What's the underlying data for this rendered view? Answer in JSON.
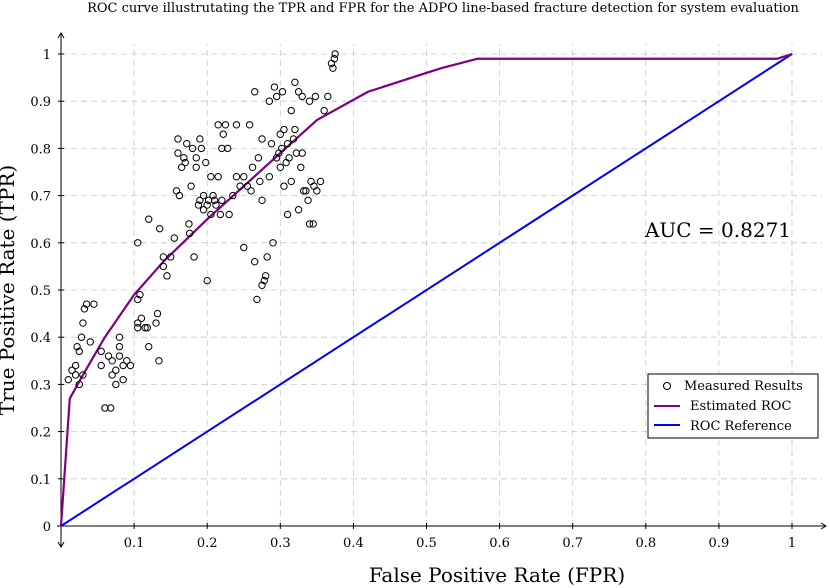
{
  "chart_data": {
    "type": "line",
    "title": "ROC curve illustrutating the TPR and FPR for the ADPO line-based fracture detection for system evaluation",
    "xlabel": "False Positive Rate (FPR)",
    "ylabel": "True Positive Rate (TPR)",
    "xlim": [
      0,
      1
    ],
    "ylim": [
      0,
      1
    ],
    "xticks": [
      "0.1",
      "0.2",
      "0.3",
      "0.4",
      "0.5",
      "0.6",
      "0.7",
      "0.8",
      "0.9",
      "1"
    ],
    "yticks": [
      "0",
      "0.1",
      "0.2",
      "0.3",
      "0.4",
      "0.5",
      "0.6",
      "0.7",
      "0.8",
      "0.9",
      "1"
    ],
    "grid": true,
    "legend_position": "right",
    "annotation": "AUC = 0.8271",
    "colors": {
      "measured": "#000000",
      "estimated": "#800080",
      "reference": "#0000ff",
      "grid": "#c8c8c8"
    },
    "series": [
      {
        "name": "Measured Results",
        "kind": "scatter",
        "marker": "circle-open",
        "points": [
          [
            0.01,
            0.31
          ],
          [
            0.015,
            0.33
          ],
          [
            0.02,
            0.32
          ],
          [
            0.02,
            0.34
          ],
          [
            0.022,
            0.38
          ],
          [
            0.025,
            0.37
          ],
          [
            0.025,
            0.3
          ],
          [
            0.028,
            0.4
          ],
          [
            0.03,
            0.43
          ],
          [
            0.03,
            0.32
          ],
          [
            0.032,
            0.46
          ],
          [
            0.035,
            0.47
          ],
          [
            0.045,
            0.47
          ],
          [
            0.04,
            0.39
          ],
          [
            0.055,
            0.37
          ],
          [
            0.055,
            0.34
          ],
          [
            0.06,
            0.25
          ],
          [
            0.065,
            0.36
          ],
          [
            0.07,
            0.35
          ],
          [
            0.068,
            0.25
          ],
          [
            0.07,
            0.32
          ],
          [
            0.075,
            0.3
          ],
          [
            0.075,
            0.33
          ],
          [
            0.08,
            0.36
          ],
          [
            0.08,
            0.38
          ],
          [
            0.08,
            0.4
          ],
          [
            0.085,
            0.34
          ],
          [
            0.085,
            0.31
          ],
          [
            0.09,
            0.35
          ],
          [
            0.095,
            0.34
          ],
          [
            0.105,
            0.43
          ],
          [
            0.105,
            0.42
          ],
          [
            0.105,
            0.48
          ],
          [
            0.108,
            0.49
          ],
          [
            0.11,
            0.44
          ],
          [
            0.115,
            0.42
          ],
          [
            0.118,
            0.42
          ],
          [
            0.12,
            0.65
          ],
          [
            0.12,
            0.38
          ],
          [
            0.105,
            0.6
          ],
          [
            0.13,
            0.43
          ],
          [
            0.132,
            0.45
          ],
          [
            0.134,
            0.35
          ],
          [
            0.135,
            0.63
          ],
          [
            0.14,
            0.55
          ],
          [
            0.145,
            0.53
          ],
          [
            0.15,
            0.57
          ],
          [
            0.155,
            0.61
          ],
          [
            0.158,
            0.71
          ],
          [
            0.16,
            0.82
          ],
          [
            0.16,
            0.79
          ],
          [
            0.162,
            0.7
          ],
          [
            0.165,
            0.76
          ],
          [
            0.168,
            0.78
          ],
          [
            0.17,
            0.77
          ],
          [
            0.172,
            0.81
          ],
          [
            0.175,
            0.64
          ],
          [
            0.176,
            0.62
          ],
          [
            0.178,
            0.72
          ],
          [
            0.18,
            0.8
          ],
          [
            0.182,
            0.57
          ],
          [
            0.185,
            0.78
          ],
          [
            0.188,
            0.68
          ],
          [
            0.19,
            0.69
          ],
          [
            0.19,
            0.82
          ],
          [
            0.192,
            0.8
          ],
          [
            0.195,
            0.7
          ],
          [
            0.195,
            0.67
          ],
          [
            0.198,
            0.77
          ],
          [
            0.2,
            0.52
          ],
          [
            0.2,
            0.68
          ],
          [
            0.202,
            0.69
          ],
          [
            0.205,
            0.66
          ],
          [
            0.205,
            0.74
          ],
          [
            0.208,
            0.7
          ],
          [
            0.21,
            0.69
          ],
          [
            0.212,
            0.68
          ],
          [
            0.215,
            0.74
          ],
          [
            0.215,
            0.85
          ],
          [
            0.218,
            0.66
          ],
          [
            0.22,
            0.69
          ],
          [
            0.22,
            0.8
          ],
          [
            0.222,
            0.83
          ],
          [
            0.225,
            0.85
          ],
          [
            0.228,
            0.8
          ],
          [
            0.23,
            0.66
          ],
          [
            0.235,
            0.7
          ],
          [
            0.24,
            0.85
          ],
          [
            0.245,
            0.72
          ],
          [
            0.25,
            0.74
          ],
          [
            0.25,
            0.59
          ],
          [
            0.255,
            0.72
          ],
          [
            0.258,
            0.85
          ],
          [
            0.26,
            0.71
          ],
          [
            0.262,
            0.76
          ],
          [
            0.265,
            0.56
          ],
          [
            0.265,
            0.92
          ],
          [
            0.268,
            0.48
          ],
          [
            0.27,
            0.78
          ],
          [
            0.272,
            0.73
          ],
          [
            0.275,
            0.69
          ],
          [
            0.275,
            0.51
          ],
          [
            0.278,
            0.52
          ],
          [
            0.28,
            0.53
          ],
          [
            0.282,
            0.57
          ],
          [
            0.285,
            0.74
          ],
          [
            0.285,
            0.9
          ],
          [
            0.288,
            0.81
          ],
          [
            0.29,
            0.6
          ],
          [
            0.292,
            0.93
          ],
          [
            0.295,
            0.91
          ],
          [
            0.295,
            0.78
          ],
          [
            0.298,
            0.79
          ],
          [
            0.3,
            0.83
          ],
          [
            0.3,
            0.76
          ],
          [
            0.302,
            0.8
          ],
          [
            0.303,
            0.92
          ],
          [
            0.305,
            0.84
          ],
          [
            0.305,
            0.72
          ],
          [
            0.308,
            0.77
          ],
          [
            0.31,
            0.81
          ],
          [
            0.31,
            0.66
          ],
          [
            0.312,
            0.78
          ],
          [
            0.315,
            0.88
          ],
          [
            0.315,
            0.73
          ],
          [
            0.318,
            0.82
          ],
          [
            0.32,
            0.94
          ],
          [
            0.32,
            0.84
          ],
          [
            0.322,
            0.79
          ],
          [
            0.325,
            0.92
          ],
          [
            0.325,
            0.67
          ],
          [
            0.328,
            0.76
          ],
          [
            0.33,
            0.91
          ],
          [
            0.33,
            0.79
          ],
          [
            0.332,
            0.71
          ],
          [
            0.335,
            0.71
          ],
          [
            0.338,
            0.69
          ],
          [
            0.34,
            0.9
          ],
          [
            0.34,
            0.64
          ],
          [
            0.342,
            0.73
          ],
          [
            0.345,
            0.64
          ],
          [
            0.346,
            0.72
          ],
          [
            0.348,
            0.91
          ],
          [
            0.35,
            0.71
          ],
          [
            0.355,
            0.73
          ],
          [
            0.36,
            0.88
          ],
          [
            0.365,
            0.91
          ],
          [
            0.37,
            0.98
          ],
          [
            0.372,
            0.97
          ],
          [
            0.374,
            0.99
          ],
          [
            0.375,
            1.0
          ],
          [
            0.275,
            0.82
          ],
          [
            0.24,
            0.74
          ],
          [
            0.185,
            0.76
          ],
          [
            0.14,
            0.57
          ]
        ]
      },
      {
        "name": "Estimated ROC",
        "kind": "line",
        "points": [
          [
            0,
            0
          ],
          [
            0.012,
            0.27
          ],
          [
            0.03,
            0.32
          ],
          [
            0.06,
            0.4
          ],
          [
            0.1,
            0.49
          ],
          [
            0.14,
            0.56
          ],
          [
            0.2,
            0.65
          ],
          [
            0.25,
            0.72
          ],
          [
            0.3,
            0.79
          ],
          [
            0.35,
            0.86
          ],
          [
            0.42,
            0.92
          ],
          [
            0.48,
            0.95
          ],
          [
            0.52,
            0.97
          ],
          [
            0.57,
            0.99
          ],
          [
            0.98,
            0.99
          ],
          [
            1,
            1
          ]
        ]
      },
      {
        "name": "ROC Reference",
        "kind": "line",
        "points": [
          [
            0,
            0
          ],
          [
            1,
            1
          ]
        ]
      }
    ]
  }
}
